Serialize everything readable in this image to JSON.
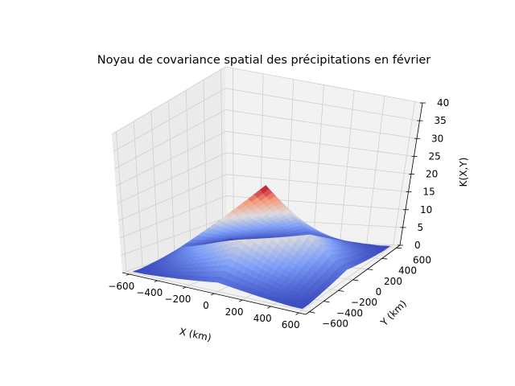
{
  "chart_data": {
    "type": "surface3d",
    "title": "Noyau de covariance spatial des précipitations en février",
    "xlabel": "X (km)",
    "ylabel": "Y (km)",
    "zlabel": "K(X,Y)",
    "xlim": [
      -650,
      650
    ],
    "ylim": [
      -650,
      650
    ],
    "zlim": [
      0,
      40
    ],
    "x_ticks": [
      -600,
      -400,
      -200,
      0,
      200,
      400,
      600
    ],
    "y_ticks": [
      -600,
      -400,
      -200,
      0,
      200,
      400,
      600
    ],
    "z_ticks": [
      0,
      5,
      10,
      15,
      20,
      25,
      30,
      35,
      40
    ],
    "surface": {
      "domain": [
        -600,
        600
      ],
      "peak_value": 21.5,
      "peak_at": [
        0,
        0
      ],
      "edge_value": 2.5,
      "corner_value": 0.4,
      "colormap": "coolwarm"
    },
    "grid": true
  }
}
